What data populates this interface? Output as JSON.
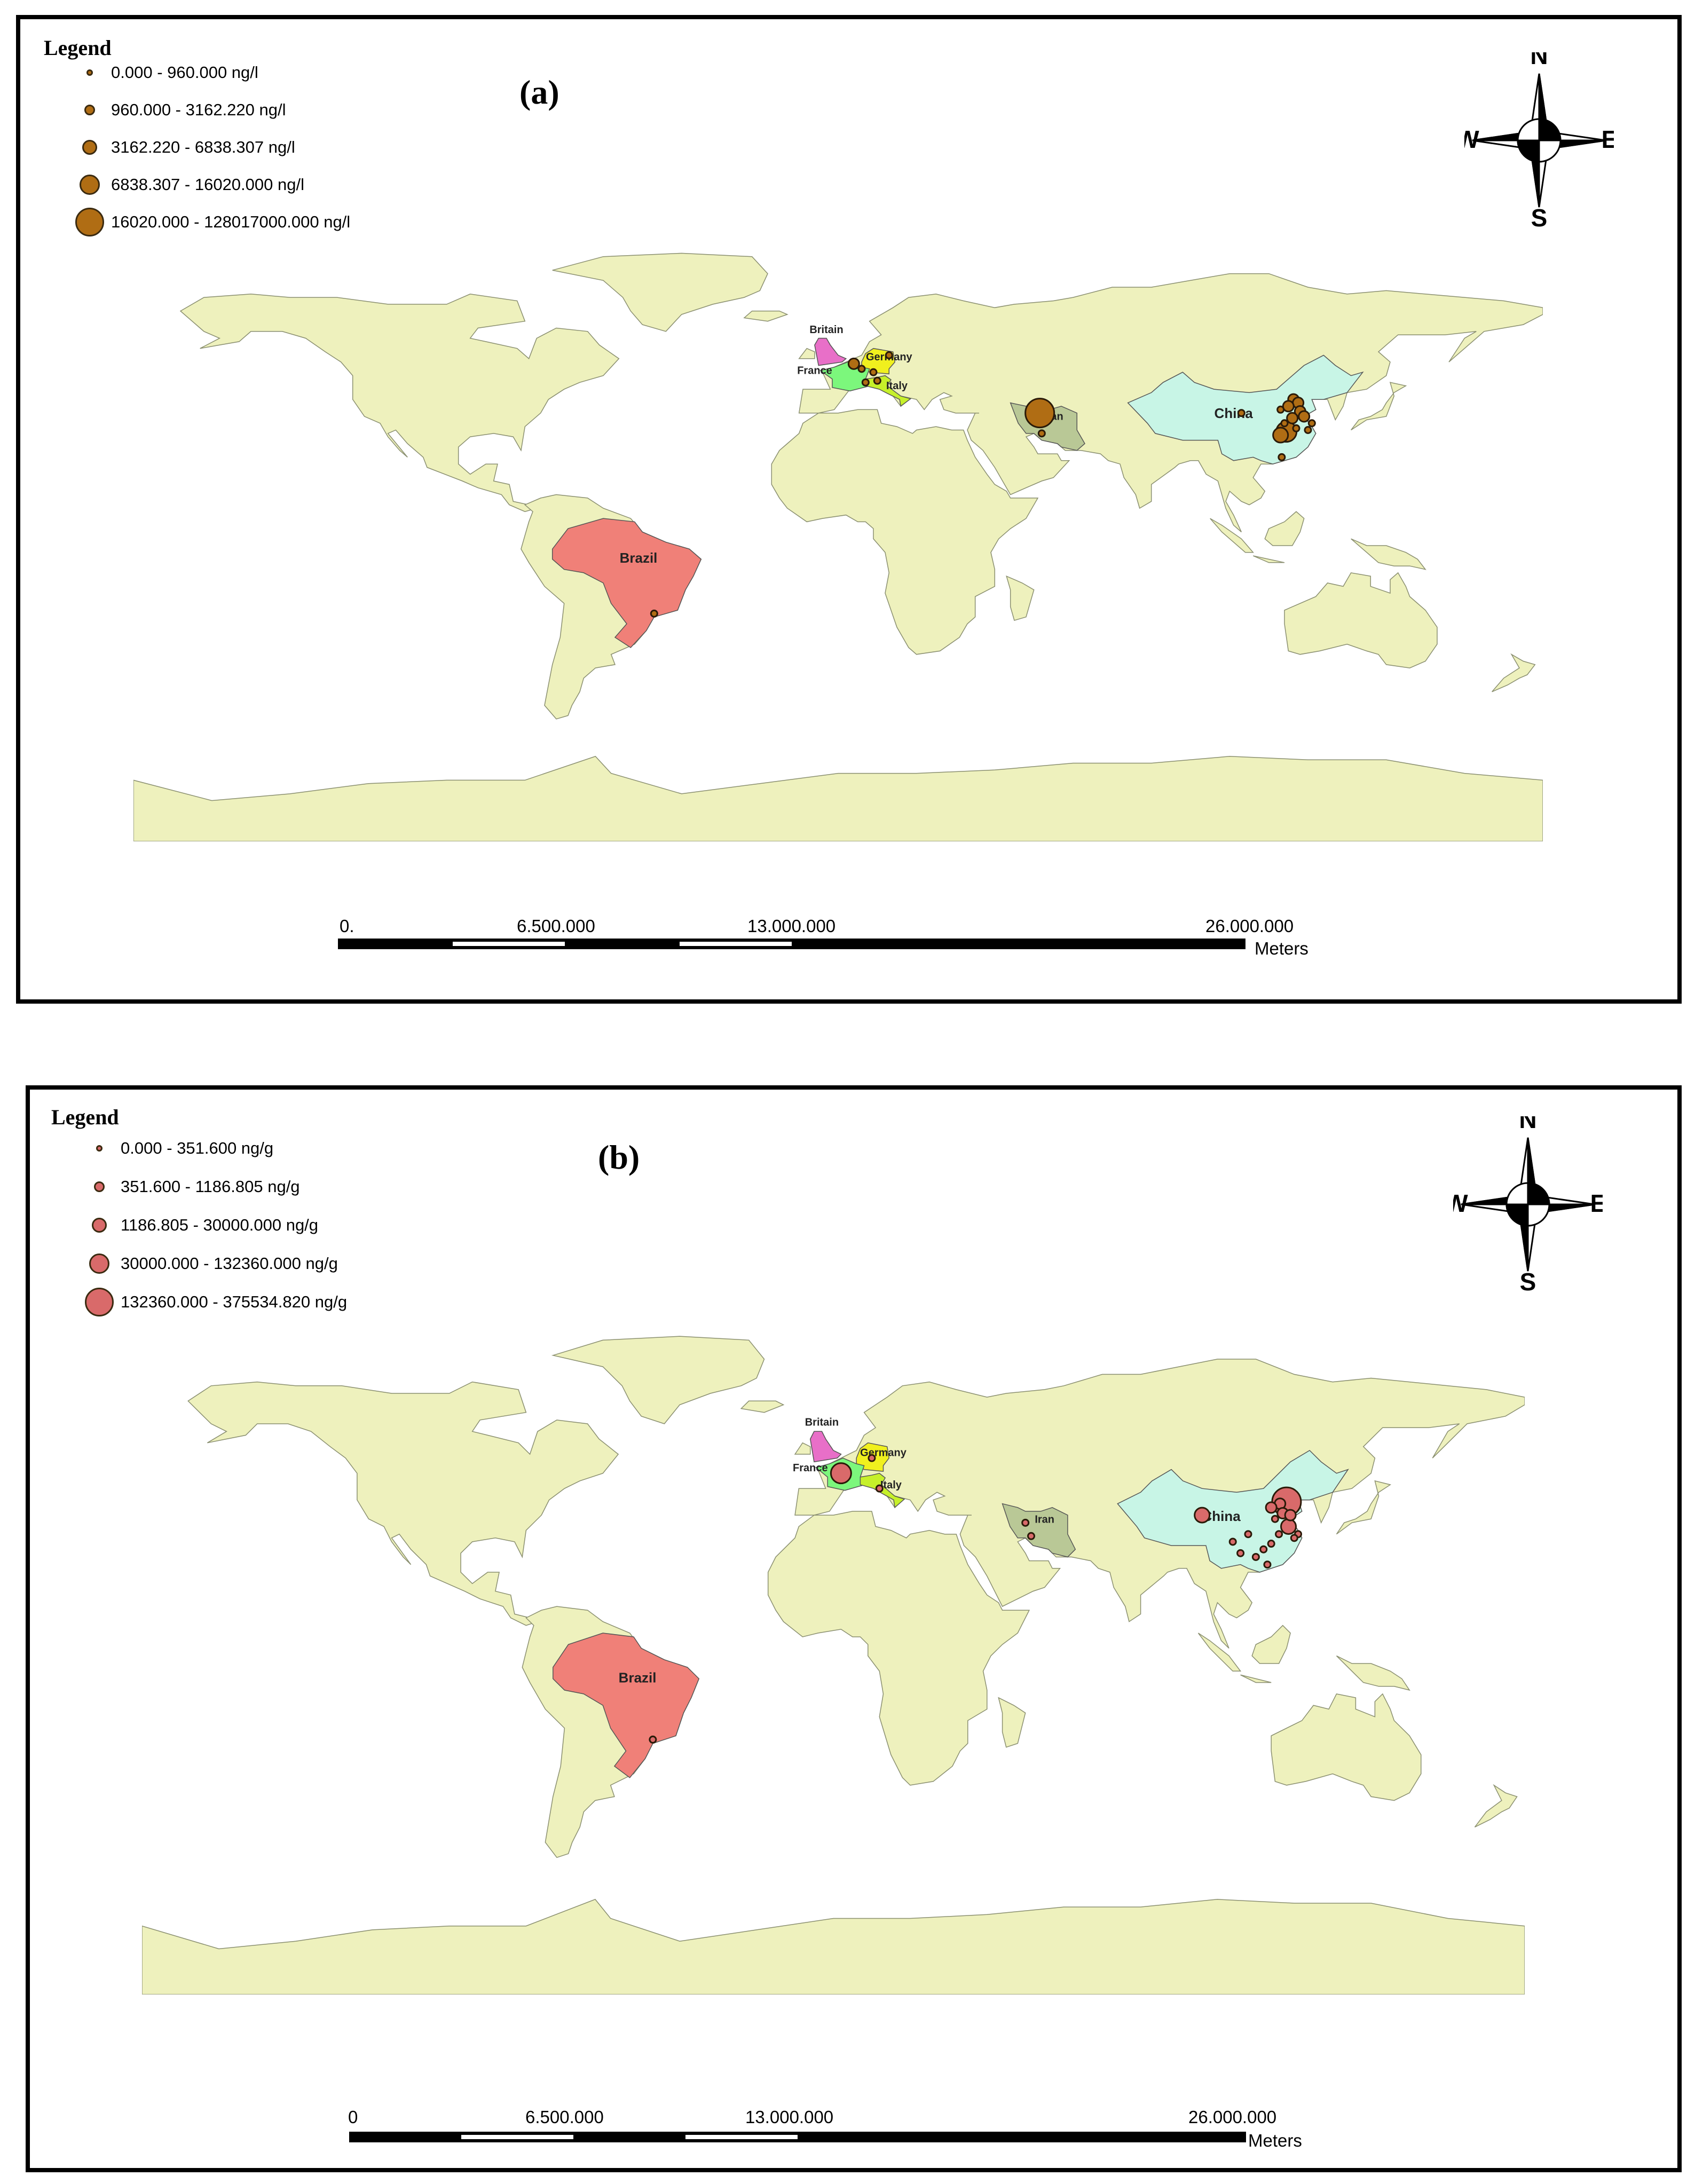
{
  "panels": [
    {
      "id": "a",
      "label": "(a)",
      "legend_title": "Legend",
      "legend_items": [
        {
          "range": "0.000 - 960.000",
          "unit": "ng/l",
          "size": 1
        },
        {
          "range": "960.000 - 3162.220",
          "unit": "ng/l",
          "size": 2
        },
        {
          "range": "3162.220 - 6838.307",
          "unit": "ng/l",
          "size": 3
        },
        {
          "range": "6838.307 - 16020.000",
          "unit": "ng/l",
          "size": 4
        },
        {
          "range": "16020.000 - 128017000.000",
          "unit": "ng/l",
          "size": 5
        }
      ],
      "symbol_color": "#b06d14",
      "compass": {
        "n": "N",
        "s": "S",
        "e": "E",
        "w": "W"
      },
      "scale": {
        "ticks": [
          "0.",
          "6.500.000",
          "13.000.000",
          "26.000.000"
        ],
        "unit": "Meters"
      },
      "countries": [
        {
          "name": "Britain",
          "color": "#e86fc8"
        },
        {
          "name": "Germany",
          "color": "#f0f01e"
        },
        {
          "name": "France",
          "color": "#7cf77c"
        },
        {
          "name": "Italy",
          "color": "#c6f02a"
        },
        {
          "name": "Iran",
          "color": "#b9c896"
        },
        {
          "name": "China",
          "color": "#c8f5e6"
        },
        {
          "name": "Brazil",
          "color": "#f08078"
        }
      ],
      "sites": [
        {
          "lon": 4,
          "lat": 50.5,
          "size": 2
        },
        {
          "lon": 6,
          "lat": 49,
          "size": 1
        },
        {
          "lon": 13,
          "lat": 53,
          "size": 1
        },
        {
          "lon": 9,
          "lat": 48,
          "size": 1
        },
        {
          "lon": 7,
          "lat": 45,
          "size": 1
        },
        {
          "lon": 10,
          "lat": 45.5,
          "size": 1
        },
        {
          "lon": 51.5,
          "lat": 36,
          "size": 5
        },
        {
          "lon": 52,
          "lat": 30,
          "size": 1
        },
        {
          "lon": 103,
          "lat": 36,
          "size": 1
        },
        {
          "lon": 116.3,
          "lat": 40,
          "size": 2
        },
        {
          "lon": 117.5,
          "lat": 39,
          "size": 2
        },
        {
          "lon": 115,
          "lat": 38,
          "size": 2
        },
        {
          "lon": 113,
          "lat": 37,
          "size": 1
        },
        {
          "lon": 118,
          "lat": 36.5,
          "size": 2
        },
        {
          "lon": 119,
          "lat": 35,
          "size": 2
        },
        {
          "lon": 116,
          "lat": 34.5,
          "size": 2
        },
        {
          "lon": 114,
          "lat": 33,
          "size": 1
        },
        {
          "lon": 120,
          "lat": 31,
          "size": 1
        },
        {
          "lon": 121,
          "lat": 33,
          "size": 1
        },
        {
          "lon": 114.5,
          "lat": 30.5,
          "size": 4
        },
        {
          "lon": 113,
          "lat": 29.5,
          "size": 3
        },
        {
          "lon": 117,
          "lat": 31.5,
          "size": 1
        },
        {
          "lon": 113.3,
          "lat": 23,
          "size": 1
        },
        {
          "lon": -47,
          "lat": -23,
          "size": 1
        }
      ]
    },
    {
      "id": "b",
      "label": "(b)",
      "legend_title": "Legend",
      "legend_items": [
        {
          "range": "0.000 - 351.600",
          "unit": "ng/g",
          "size": 1
        },
        {
          "range": "351.600 - 1186.805",
          "unit": "ng/g",
          "size": 2
        },
        {
          "range": "1186.805 - 30000.000",
          "unit": "ng/g",
          "size": 3
        },
        {
          "range": "30000.000 - 132360.000",
          "unit": "ng/g",
          "size": 4
        },
        {
          "range": "132360.000 - 375534.820",
          "unit": "ng/g",
          "size": 5
        }
      ],
      "symbol_color": "#d96a6a",
      "compass": {
        "n": "N",
        "s": "S",
        "e": "E",
        "w": "W"
      },
      "scale": {
        "ticks": [
          "0",
          "6.500.000",
          "13.000.000",
          "26.000.000"
        ],
        "unit": "Meters"
      },
      "countries": [
        {
          "name": "Britain",
          "color": "#e86fc8"
        },
        {
          "name": "Germany",
          "color": "#f0f01e"
        },
        {
          "name": "France",
          "color": "#7cf77c"
        },
        {
          "name": "Italy",
          "color": "#c6f02a"
        },
        {
          "name": "Iran",
          "color": "#b9c896"
        },
        {
          "name": "China",
          "color": "#c8f5e6"
        },
        {
          "name": "Brazil",
          "color": "#f08078"
        }
      ],
      "sites": [
        {
          "lon": 2,
          "lat": 47,
          "size": 4
        },
        {
          "lon": 10,
          "lat": 51,
          "size": 1
        },
        {
          "lon": 12,
          "lat": 43,
          "size": 1
        },
        {
          "lon": 50,
          "lat": 34,
          "size": 1
        },
        {
          "lon": 51.5,
          "lat": 30.5,
          "size": 1
        },
        {
          "lon": 96,
          "lat": 36,
          "size": 3
        },
        {
          "lon": 118,
          "lat": 39.5,
          "size": 5
        },
        {
          "lon": 116.3,
          "lat": 39,
          "size": 2
        },
        {
          "lon": 114,
          "lat": 38,
          "size": 2
        },
        {
          "lon": 117,
          "lat": 36.5,
          "size": 2
        },
        {
          "lon": 119,
          "lat": 36,
          "size": 2
        },
        {
          "lon": 115,
          "lat": 35,
          "size": 1
        },
        {
          "lon": 118.5,
          "lat": 33,
          "size": 3
        },
        {
          "lon": 121,
          "lat": 31,
          "size": 1
        },
        {
          "lon": 116,
          "lat": 31,
          "size": 1
        },
        {
          "lon": 120,
          "lat": 30,
          "size": 1
        },
        {
          "lon": 114,
          "lat": 28.5,
          "size": 1
        },
        {
          "lon": 112,
          "lat": 27,
          "size": 1
        },
        {
          "lon": 110,
          "lat": 25,
          "size": 1
        },
        {
          "lon": 113,
          "lat": 23,
          "size": 1
        },
        {
          "lon": 106,
          "lat": 26,
          "size": 1
        },
        {
          "lon": 104,
          "lat": 29,
          "size": 1
        },
        {
          "lon": 108,
          "lat": 31,
          "size": 1
        },
        {
          "lon": -47,
          "lat": -23,
          "size": 1
        }
      ]
    }
  ]
}
